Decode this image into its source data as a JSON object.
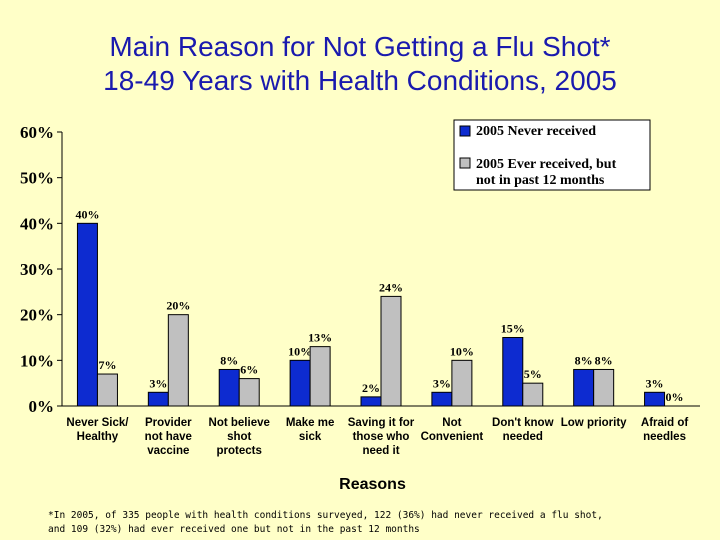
{
  "title_line1": "Main Reason for Not Getting a Flu Shot*",
  "title_line2": "18-49 Years with Health Conditions, 2005",
  "footnote_line1": "*In 2005, of 335 people with health conditions surveyed, 122 (36%) had never received a flu shot,",
  "footnote_line2": "and 109 (32%) had ever received one but not in the past 12 months",
  "colors": {
    "series1": "#0D2BD0",
    "series2": "#C0C0C0",
    "title": "#1A1AAE",
    "background": "#FFFFC8"
  },
  "chart_data": {
    "type": "bar",
    "title": "Main Reason for Not Getting a Flu Shot* 18-49 Years with Health Conditions, 2005",
    "xlabel": "Reasons",
    "ylabel": "",
    "ylim": [
      0,
      60
    ],
    "yticks": [
      "0%",
      "10%",
      "20%",
      "30%",
      "40%",
      "50%",
      "60%"
    ],
    "categories": [
      [
        "Never Sick/",
        "Healthy"
      ],
      [
        "Provider",
        "not have",
        "vaccine"
      ],
      [
        "Not believe",
        "shot",
        "protects"
      ],
      [
        "Make  me",
        "sick"
      ],
      [
        "Saving it for",
        "those who",
        "need it"
      ],
      [
        "Not",
        "Convenient"
      ],
      [
        "Don't  know",
        "needed"
      ],
      [
        "Low priority"
      ],
      [
        "Afraid of",
        "needles"
      ]
    ],
    "series": [
      {
        "name": "2005 Never received",
        "values": [
          40,
          3,
          8,
          10,
          2,
          3,
          15,
          8,
          3
        ],
        "labels": [
          "40%",
          "3%",
          "8%",
          "10%",
          "2%",
          "3%",
          "15%",
          "8%",
          "3%"
        ]
      },
      {
        "name": "2005 Ever received,  but not in  past 12 months",
        "values": [
          7,
          20,
          6,
          13,
          24,
          10,
          5,
          8,
          0
        ],
        "labels": [
          "7%",
          "20%",
          "6%",
          "13%",
          "24%",
          "10%",
          "5%",
          "8%",
          "0%"
        ]
      }
    ],
    "legend": {
      "position": "top-right",
      "entries": [
        [
          "2005 Never received"
        ],
        [
          "2005 Ever received,  but",
          "not in  past 12 months"
        ]
      ]
    },
    "grid": false
  }
}
